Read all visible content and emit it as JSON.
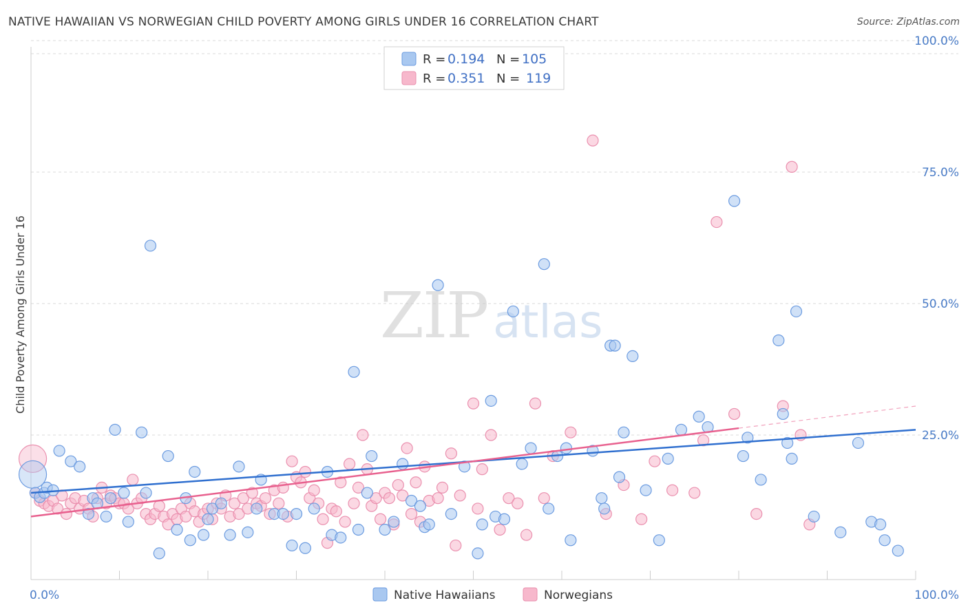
{
  "title": "NATIVE HAWAIIAN VS NORWEGIAN CHILD POVERTY AMONG GIRLS UNDER 16 CORRELATION CHART",
  "source": "Source: ZipAtlas.com",
  "watermark": {
    "zip": "ZIP",
    "atlas": "atlas"
  },
  "colors": {
    "blue_fill": "#a9c8f0",
    "blue_stroke": "#6b9be0",
    "blue_line": "#2f6fcf",
    "pink_fill": "#f7b8cc",
    "pink_stroke": "#ea8fae",
    "pink_line": "#e8608e",
    "tick_text": "#4a7cc7",
    "grid": "#d9d9d9"
  },
  "legend_top": {
    "rows": [
      {
        "r_label": "R =",
        "r_value": "0.194",
        "n_label": "N =",
        "n_value": "105"
      },
      {
        "r_label": "R =",
        "r_value": "0.351",
        "n_label": "N =",
        "n_value": "119"
      }
    ]
  },
  "chart_data": {
    "type": "scatter",
    "xlabel": "",
    "ylabel": "Child Poverty Among Girls Under 16",
    "xlim": [
      0,
      100
    ],
    "ylim": [
      0,
      100
    ],
    "y_ticks": [
      {
        "value": 25,
        "label": "25.0%"
      },
      {
        "value": 50,
        "label": "50.0%"
      },
      {
        "value": 75,
        "label": "75.0%"
      },
      {
        "value": 100,
        "label": "100.0%"
      }
    ],
    "x_tick_labels": {
      "left": "0.0%",
      "right": "100.0%"
    },
    "x_minor_ticks": [
      10,
      20,
      30,
      40,
      50,
      60,
      70,
      80,
      90,
      100
    ],
    "grid": true,
    "legend_position": "bottom-center",
    "series": [
      {
        "name": "Native Hawaiians",
        "color": "#a9c8f0",
        "trend": {
          "x": [
            0,
            100
          ],
          "y": [
            14.0,
            26.0
          ],
          "dashed_from": null
        },
        "points": [
          [
            0.2,
            17.5
          ],
          [
            0.5,
            14.0
          ],
          [
            1.0,
            13.2
          ],
          [
            1.5,
            14.0
          ],
          [
            1.8,
            15.0
          ],
          [
            2.5,
            14.5
          ],
          [
            3.2,
            22.0
          ],
          [
            4.5,
            20.0
          ],
          [
            5.5,
            19.0
          ],
          [
            6.5,
            10.0
          ],
          [
            7.0,
            13.0
          ],
          [
            7.5,
            12.0
          ],
          [
            8.5,
            9.5
          ],
          [
            9.0,
            13.0
          ],
          [
            9.5,
            26.0
          ],
          [
            10.5,
            14.0
          ],
          [
            11.0,
            8.5
          ],
          [
            12.5,
            25.5
          ],
          [
            13.0,
            14.0
          ],
          [
            13.5,
            61.0
          ],
          [
            14.5,
            2.5
          ],
          [
            15.5,
            21.0
          ],
          [
            16.5,
            7.0
          ],
          [
            17.5,
            13.0
          ],
          [
            18.0,
            5.0
          ],
          [
            18.5,
            18.0
          ],
          [
            19.5,
            6.0
          ],
          [
            20.0,
            9.0
          ],
          [
            20.5,
            11.0
          ],
          [
            21.5,
            12.0
          ],
          [
            22.5,
            6.0
          ],
          [
            23.5,
            19.0
          ],
          [
            24.5,
            6.5
          ],
          [
            25.5,
            11.0
          ],
          [
            26.0,
            16.5
          ],
          [
            27.5,
            10.0
          ],
          [
            28.5,
            10.0
          ],
          [
            29.5,
            4.0
          ],
          [
            30.0,
            10.0
          ],
          [
            31.0,
            3.5
          ],
          [
            32.0,
            11.0
          ],
          [
            33.5,
            18.0
          ],
          [
            34.0,
            6.0
          ],
          [
            35.0,
            5.5
          ],
          [
            36.5,
            37.0
          ],
          [
            37.0,
            7.0
          ],
          [
            38.0,
            14.0
          ],
          [
            38.5,
            21.0
          ],
          [
            40.0,
            7.0
          ],
          [
            41.0,
            8.5
          ],
          [
            42.0,
            19.5
          ],
          [
            43.0,
            12.5
          ],
          [
            44.0,
            11.5
          ],
          [
            44.5,
            7.5
          ],
          [
            45.0,
            8.0
          ],
          [
            46.0,
            53.5
          ],
          [
            47.5,
            10.0
          ],
          [
            49.0,
            19.0
          ],
          [
            50.5,
            2.5
          ],
          [
            51.0,
            8.0
          ],
          [
            52.0,
            31.5
          ],
          [
            52.5,
            9.5
          ],
          [
            53.5,
            9.0
          ],
          [
            54.5,
            48.5
          ],
          [
            55.5,
            19.5
          ],
          [
            56.5,
            22.5
          ],
          [
            58.0,
            57.5
          ],
          [
            58.5,
            11.0
          ],
          [
            59.5,
            21.0
          ],
          [
            60.5,
            22.5
          ],
          [
            61.0,
            5.0
          ],
          [
            63.5,
            22.0
          ],
          [
            64.5,
            13.0
          ],
          [
            64.8,
            11.0
          ],
          [
            65.5,
            42.0
          ],
          [
            66.0,
            42.0
          ],
          [
            66.5,
            17.0
          ],
          [
            67.0,
            25.5
          ],
          [
            68.0,
            40.0
          ],
          [
            69.5,
            14.5
          ],
          [
            71.0,
            5.0
          ],
          [
            72.0,
            20.5
          ],
          [
            73.5,
            26.0
          ],
          [
            75.5,
            28.5
          ],
          [
            76.5,
            26.5
          ],
          [
            79.5,
            69.5
          ],
          [
            80.5,
            21.0
          ],
          [
            81.0,
            24.5
          ],
          [
            82.5,
            16.5
          ],
          [
            84.5,
            43.0
          ],
          [
            85.0,
            29.0
          ],
          [
            85.5,
            23.5
          ],
          [
            86.0,
            20.5
          ],
          [
            86.5,
            48.5
          ],
          [
            88.5,
            9.5
          ],
          [
            91.5,
            6.5
          ],
          [
            93.5,
            23.5
          ],
          [
            95.0,
            8.5
          ],
          [
            96.0,
            8.0
          ],
          [
            96.5,
            5.0
          ],
          [
            98.0,
            3.0
          ]
        ]
      },
      {
        "name": "Norwegians",
        "color": "#f7b8cc",
        "trend": {
          "x": [
            0,
            100
          ],
          "y": [
            9.5,
            30.5
          ],
          "dashed_from": 80
        },
        "points": [
          [
            0.2,
            20.5
          ],
          [
            0.5,
            14.0
          ],
          [
            1.0,
            12.5
          ],
          [
            1.5,
            12.0
          ],
          [
            2.0,
            11.5
          ],
          [
            2.5,
            12.5
          ],
          [
            3.0,
            11.0
          ],
          [
            3.5,
            13.5
          ],
          [
            4.0,
            10.0
          ],
          [
            4.5,
            12.0
          ],
          [
            5.0,
            13.0
          ],
          [
            5.5,
            11.0
          ],
          [
            6.0,
            12.5
          ],
          [
            6.5,
            11.0
          ],
          [
            7.0,
            9.5
          ],
          [
            7.5,
            13.0
          ],
          [
            8.0,
            15.0
          ],
          [
            8.5,
            12.0
          ],
          [
            9.0,
            13.5
          ],
          [
            9.5,
            13.0
          ],
          [
            10.0,
            12.0
          ],
          [
            10.5,
            12.0
          ],
          [
            11.0,
            11.0
          ],
          [
            11.5,
            16.5
          ],
          [
            12.0,
            12.0
          ],
          [
            12.5,
            13.0
          ],
          [
            13.0,
            10.0
          ],
          [
            13.5,
            9.0
          ],
          [
            14.0,
            10.0
          ],
          [
            14.5,
            11.5
          ],
          [
            15.0,
            9.5
          ],
          [
            15.5,
            8.0
          ],
          [
            16.0,
            10.0
          ],
          [
            16.5,
            9.0
          ],
          [
            17.0,
            11.0
          ],
          [
            17.5,
            9.5
          ],
          [
            18.0,
            12.0
          ],
          [
            18.5,
            10.5
          ],
          [
            19.0,
            8.5
          ],
          [
            19.5,
            10.0
          ],
          [
            20.0,
            11.0
          ],
          [
            20.5,
            9.0
          ],
          [
            21.0,
            12.0
          ],
          [
            21.5,
            11.0
          ],
          [
            22.0,
            13.5
          ],
          [
            22.5,
            9.5
          ],
          [
            23.0,
            12.0
          ],
          [
            23.5,
            10.0
          ],
          [
            24.0,
            13.0
          ],
          [
            24.5,
            11.0
          ],
          [
            25.0,
            14.0
          ],
          [
            25.5,
            12.0
          ],
          [
            26.0,
            11.5
          ],
          [
            26.5,
            13.0
          ],
          [
            27.0,
            10.0
          ],
          [
            27.5,
            14.5
          ],
          [
            28.0,
            12.0
          ],
          [
            28.5,
            15.0
          ],
          [
            29.0,
            9.5
          ],
          [
            29.5,
            20.0
          ],
          [
            30.0,
            17.0
          ],
          [
            30.5,
            16.0
          ],
          [
            31.0,
            18.0
          ],
          [
            31.5,
            13.0
          ],
          [
            32.0,
            14.5
          ],
          [
            32.5,
            12.0
          ],
          [
            33.0,
            9.0
          ],
          [
            33.5,
            4.5
          ],
          [
            34.0,
            11.0
          ],
          [
            34.5,
            10.5
          ],
          [
            35.0,
            16.0
          ],
          [
            35.5,
            8.5
          ],
          [
            36.0,
            19.5
          ],
          [
            36.5,
            12.0
          ],
          [
            37.0,
            15.0
          ],
          [
            37.5,
            25.0
          ],
          [
            38.0,
            18.5
          ],
          [
            38.5,
            11.5
          ],
          [
            39.0,
            13.0
          ],
          [
            39.5,
            9.0
          ],
          [
            40.0,
            14.0
          ],
          [
            40.5,
            13.0
          ],
          [
            41.0,
            8.0
          ],
          [
            41.5,
            15.5
          ],
          [
            42.0,
            13.5
          ],
          [
            42.5,
            22.5
          ],
          [
            43.0,
            10.0
          ],
          [
            43.5,
            16.0
          ],
          [
            44.0,
            8.5
          ],
          [
            44.5,
            19.0
          ],
          [
            45.0,
            12.5
          ],
          [
            46.0,
            13.0
          ],
          [
            46.5,
            15.0
          ],
          [
            47.5,
            21.5
          ],
          [
            48.0,
            4.0
          ],
          [
            48.5,
            13.5
          ],
          [
            50.0,
            31.0
          ],
          [
            50.5,
            11.0
          ],
          [
            51.0,
            18.5
          ],
          [
            52.0,
            25.0
          ],
          [
            53.0,
            7.0
          ],
          [
            54.0,
            13.0
          ],
          [
            55.0,
            12.0
          ],
          [
            56.0,
            6.0
          ],
          [
            57.0,
            31.0
          ],
          [
            58.0,
            13.0
          ],
          [
            59.0,
            21.0
          ],
          [
            61.0,
            25.5
          ],
          [
            63.5,
            81.0
          ],
          [
            65.0,
            10.0
          ],
          [
            67.0,
            15.5
          ],
          [
            69.0,
            9.0
          ],
          [
            70.5,
            20.0
          ],
          [
            72.5,
            14.5
          ],
          [
            75.0,
            14.0
          ],
          [
            76.0,
            24.0
          ],
          [
            77.5,
            65.5
          ],
          [
            79.5,
            29.0
          ],
          [
            82.0,
            10.0
          ],
          [
            85.0,
            30.5
          ],
          [
            86.0,
            76.0
          ],
          [
            87.0,
            25.0
          ],
          [
            88.0,
            8.0
          ]
        ]
      }
    ]
  }
}
